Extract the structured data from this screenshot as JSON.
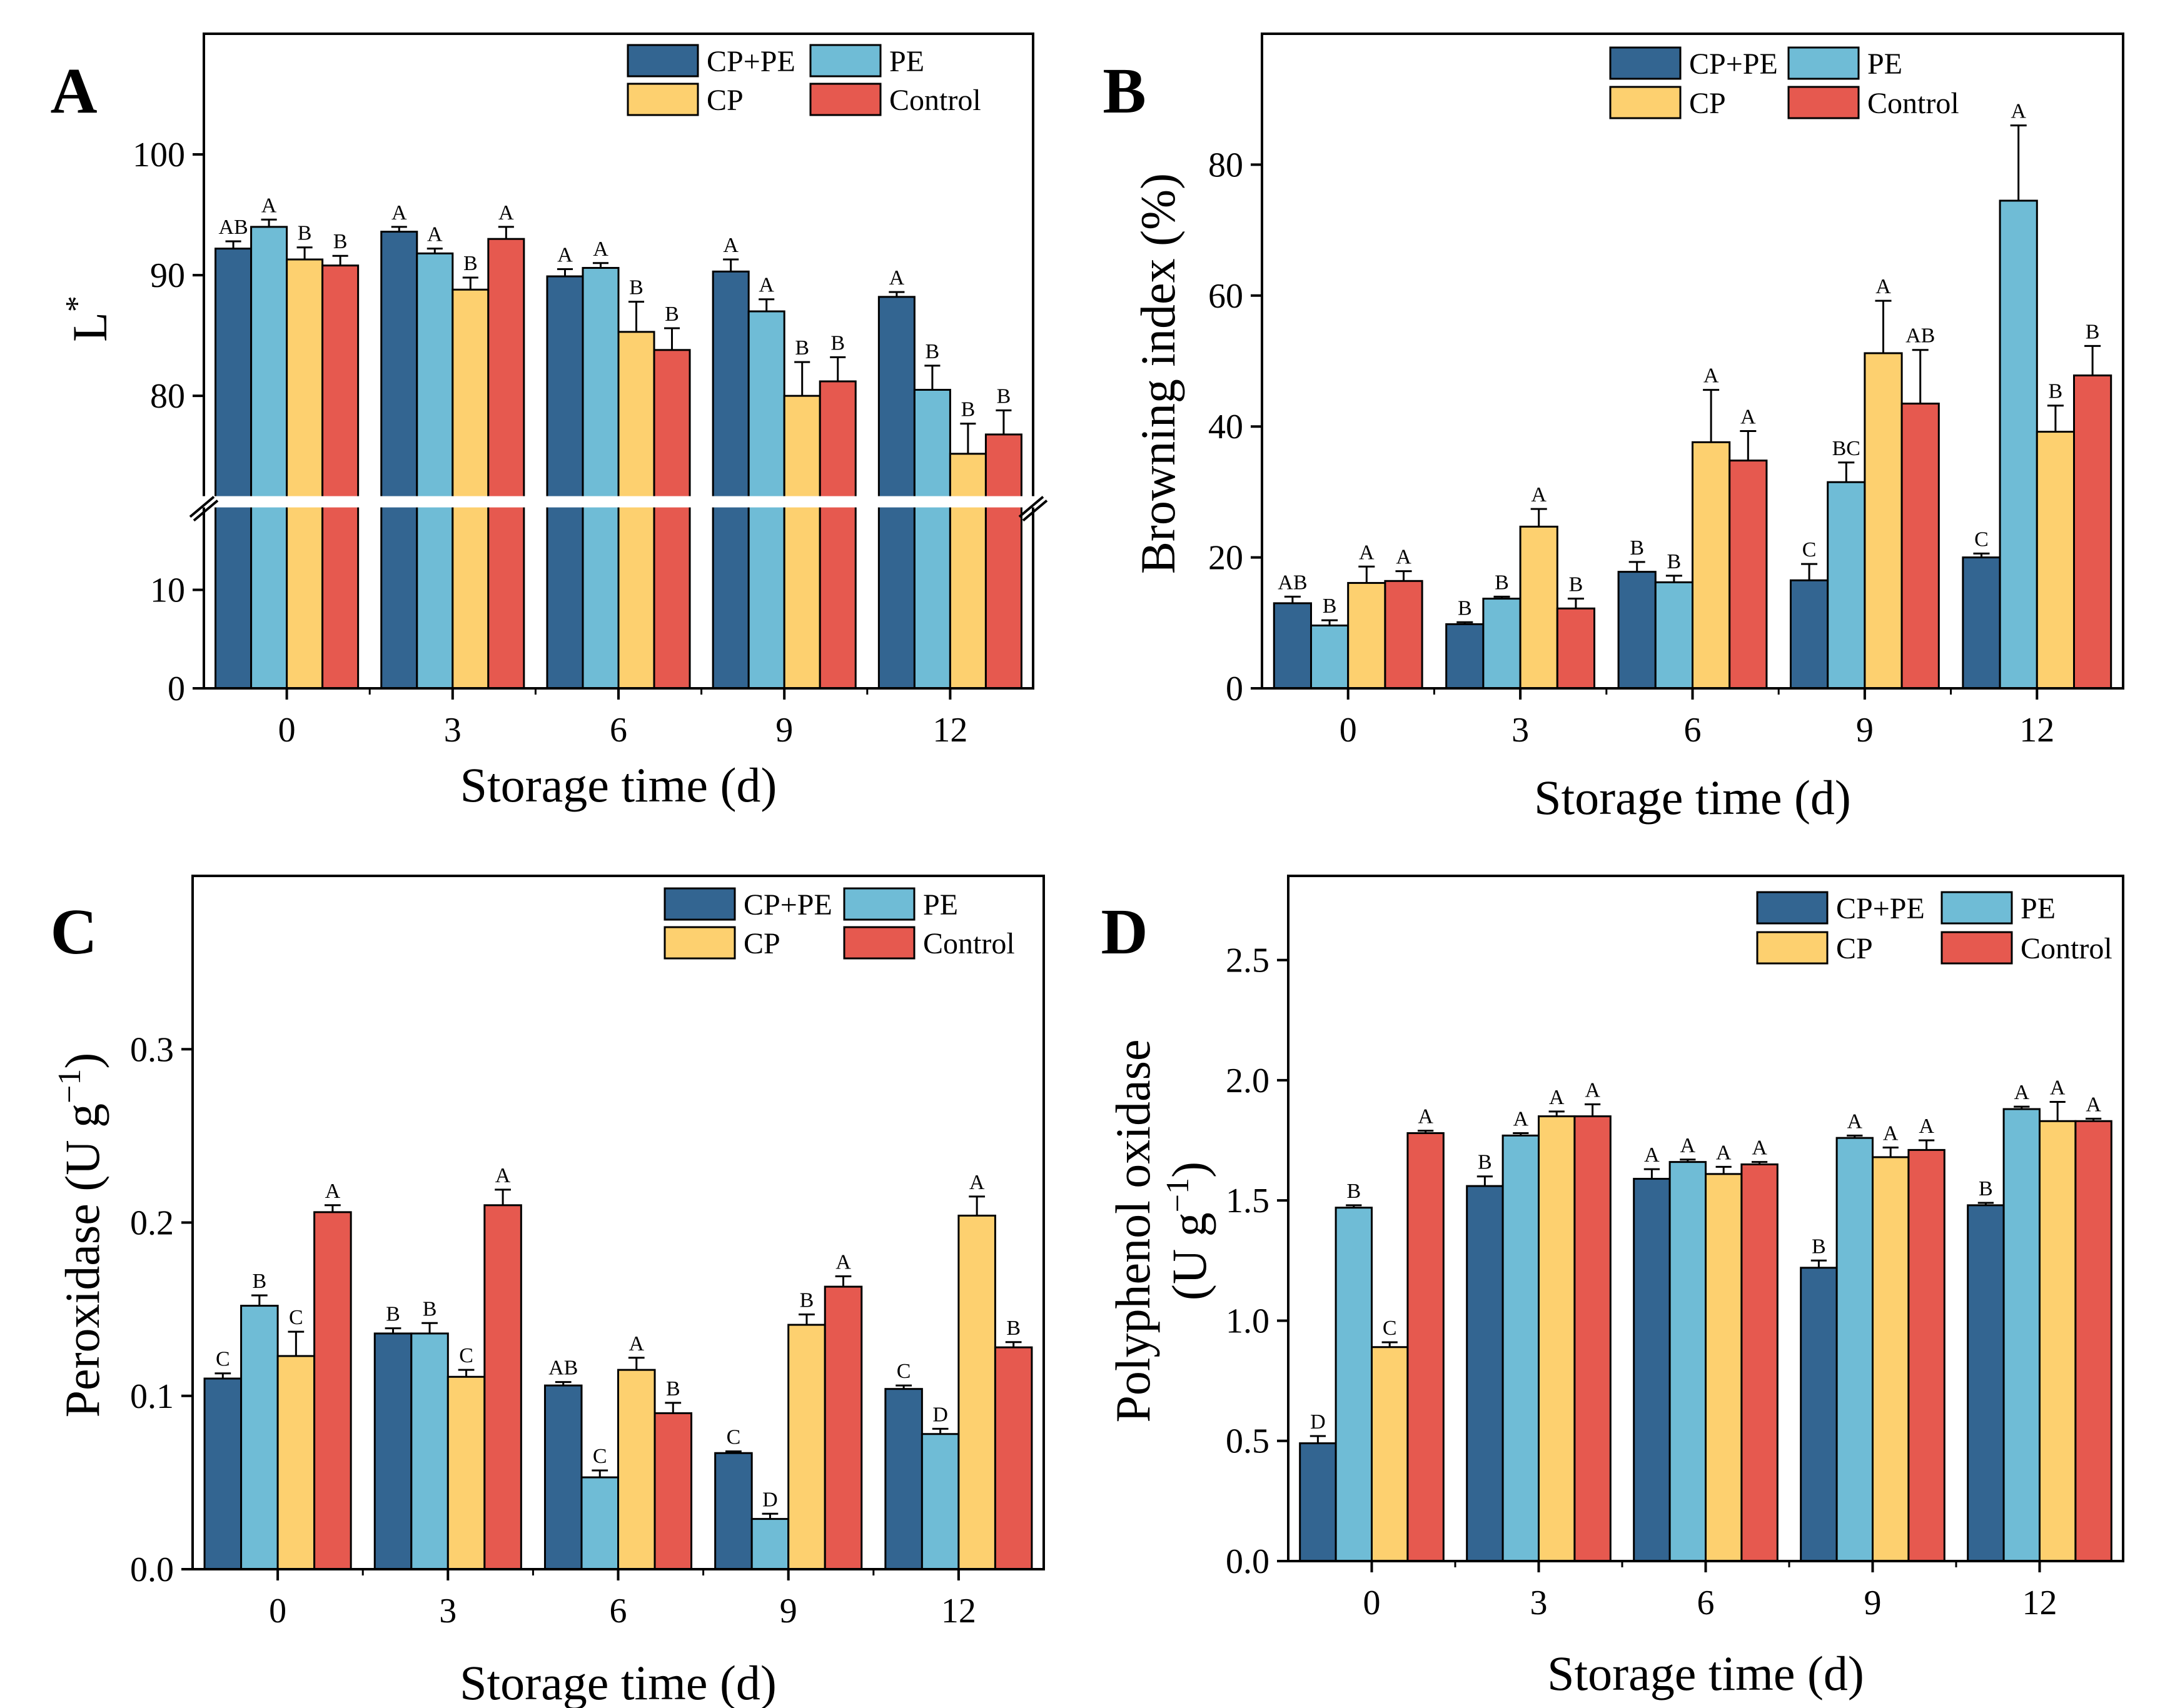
{
  "colors": {
    "CP+PE": "#336591",
    "PE": "#6fbcd6",
    "CP": "#fdd06f",
    "Control": "#e6594f"
  },
  "chart_data": [
    {
      "panel": "A",
      "type": "bar",
      "xlabel": "Storage time (d)",
      "ylabel": "L",
      "ylabel_sup": "*",
      "categories": [
        "0",
        "3",
        "6",
        "9",
        "12"
      ],
      "legend": [
        "CP+PE",
        "PE",
        "CP",
        "Control"
      ],
      "legend_position": "top-right",
      "axis_break": [
        18,
        72
      ],
      "ylim": [
        0,
        110
      ],
      "yticks": [
        0,
        10,
        80,
        90,
        100
      ],
      "series": [
        {
          "name": "CP+PE",
          "values": [
            92.2,
            93.6,
            89.9,
            90.3,
            88.2
          ],
          "errors": [
            0.6,
            0.4,
            0.6,
            1.0,
            0.4
          ],
          "labels": [
            "AB",
            "A",
            "A",
            "A",
            "A"
          ]
        },
        {
          "name": "PE",
          "values": [
            94.0,
            91.8,
            90.6,
            87.0,
            80.5
          ],
          "errors": [
            0.6,
            0.4,
            0.4,
            1.0,
            2.0
          ],
          "labels": [
            "A",
            "A",
            "A",
            "A",
            "B"
          ]
        },
        {
          "name": "CP",
          "values": [
            91.3,
            88.8,
            85.3,
            80.0,
            75.2
          ],
          "errors": [
            1.0,
            1.0,
            2.5,
            2.8,
            2.5
          ],
          "labels": [
            "B",
            "B",
            "B",
            "B",
            "B"
          ]
        },
        {
          "name": "Control",
          "values": [
            90.8,
            93.0,
            83.8,
            81.2,
            76.8
          ],
          "errors": [
            0.8,
            1.0,
            1.8,
            2.0,
            2.0
          ],
          "labels": [
            "B",
            "A",
            "B",
            "B",
            "B"
          ]
        }
      ]
    },
    {
      "panel": "B",
      "type": "bar",
      "xlabel": "Storage time (d)",
      "ylabel": "Browning index (%)",
      "categories": [
        "0",
        "3",
        "6",
        "9",
        "12"
      ],
      "legend": [
        "CP+PE",
        "PE",
        "CP",
        "Control"
      ],
      "legend_position": "top-right",
      "ylim": [
        0,
        100
      ],
      "yticks": [
        0,
        20,
        40,
        60,
        80
      ],
      "series": [
        {
          "name": "CP+PE",
          "values": [
            13.0,
            9.8,
            17.8,
            16.5,
            20.0
          ],
          "errors": [
            1.0,
            0.3,
            1.5,
            2.5,
            0.6
          ],
          "labels": [
            "AB",
            "B",
            "B",
            "C",
            "C"
          ]
        },
        {
          "name": "PE",
          "values": [
            9.6,
            13.7,
            16.2,
            31.5,
            74.5
          ],
          "errors": [
            0.8,
            0.3,
            1.0,
            3.0,
            11.5
          ],
          "labels": [
            "B",
            "B",
            "B",
            "BC",
            "A"
          ]
        },
        {
          "name": "CP",
          "values": [
            16.1,
            24.7,
            37.6,
            51.2,
            39.2
          ],
          "errors": [
            2.5,
            2.7,
            8.0,
            8.0,
            4.0
          ],
          "labels": [
            "A",
            "A",
            "A",
            "A",
            "B"
          ]
        },
        {
          "name": "Control",
          "values": [
            16.4,
            12.2,
            34.8,
            43.5,
            47.8
          ],
          "errors": [
            1.5,
            1.5,
            4.5,
            8.2,
            4.5
          ],
          "labels": [
            "A",
            "B",
            "A",
            "AB",
            "B"
          ]
        }
      ]
    },
    {
      "panel": "C",
      "type": "bar",
      "xlabel": "Storage time (d)",
      "ylabel": "Peroxidase (U g",
      "ylabel_sup": "−1",
      "ylabel_end": ")",
      "categories": [
        "0",
        "3",
        "6",
        "9",
        "12"
      ],
      "legend": [
        "CP+PE",
        "PE",
        "CP",
        "Control"
      ],
      "legend_position": "top-right",
      "ylim": [
        0,
        0.4
      ],
      "yticks": [
        0.0,
        0.1,
        0.2,
        0.3
      ],
      "yticklabels": [
        "0.0",
        "0.1",
        "0.2",
        "0.3"
      ],
      "series": [
        {
          "name": "CP+PE",
          "values": [
            0.11,
            0.136,
            0.106,
            0.067,
            0.104
          ],
          "errors": [
            0.003,
            0.003,
            0.002,
            0.001,
            0.002
          ],
          "labels": [
            "C",
            "B",
            "AB",
            "C",
            "C"
          ]
        },
        {
          "name": "PE",
          "values": [
            0.152,
            0.136,
            0.053,
            0.029,
            0.078
          ],
          "errors": [
            0.006,
            0.006,
            0.004,
            0.003,
            0.003
          ],
          "labels": [
            "B",
            "B",
            "C",
            "D",
            "D"
          ]
        },
        {
          "name": "CP",
          "values": [
            0.123,
            0.111,
            0.115,
            0.141,
            0.204
          ],
          "errors": [
            0.014,
            0.004,
            0.007,
            0.006,
            0.011
          ],
          "labels": [
            "C",
            "C",
            "A",
            "B",
            "A"
          ]
        },
        {
          "name": "Control",
          "values": [
            0.206,
            0.21,
            0.09,
            0.163,
            0.128
          ],
          "errors": [
            0.004,
            0.009,
            0.006,
            0.006,
            0.003
          ],
          "labels": [
            "A",
            "A",
            "B",
            "A",
            "B"
          ]
        }
      ]
    },
    {
      "panel": "D",
      "type": "bar",
      "xlabel": "Storage time (d)",
      "ylabel": "Polyphenol oxidase",
      "ylabel2": "(U g",
      "ylabel2_sup": "−1",
      "ylabel2_end": ")",
      "categories": [
        "0",
        "3",
        "6",
        "9",
        "12"
      ],
      "legend": [
        "CP+PE",
        "PE",
        "CP",
        "Control"
      ],
      "legend_position": "top-right",
      "ylim": [
        0,
        2.85
      ],
      "yticks": [
        0.0,
        0.5,
        1.0,
        1.5,
        2.0,
        2.5
      ],
      "yticklabels": [
        "0.0",
        "0.5",
        "1.0",
        "1.5",
        "2.0",
        "2.5"
      ],
      "series": [
        {
          "name": "CP+PE",
          "values": [
            0.49,
            1.56,
            1.59,
            1.22,
            1.48
          ],
          "errors": [
            0.03,
            0.04,
            0.04,
            0.03,
            0.01
          ],
          "labels": [
            "D",
            "B",
            "A",
            "B",
            "B"
          ]
        },
        {
          "name": "PE",
          "values": [
            1.47,
            1.77,
            1.66,
            1.76,
            1.88
          ],
          "errors": [
            0.01,
            0.01,
            0.01,
            0.01,
            0.01
          ],
          "labels": [
            "B",
            "A",
            "A",
            "A",
            "A"
          ]
        },
        {
          "name": "CP",
          "values": [
            0.89,
            1.85,
            1.61,
            1.68,
            1.83
          ],
          "errors": [
            0.02,
            0.02,
            0.03,
            0.04,
            0.08
          ],
          "labels": [
            "C",
            "A",
            "A",
            "A",
            "A"
          ]
        },
        {
          "name": "Control",
          "values": [
            1.78,
            1.85,
            1.65,
            1.71,
            1.83
          ],
          "errors": [
            0.01,
            0.05,
            0.01,
            0.04,
            0.01
          ],
          "labels": [
            "A",
            "A",
            "A",
            "A",
            "A"
          ]
        }
      ]
    }
  ]
}
